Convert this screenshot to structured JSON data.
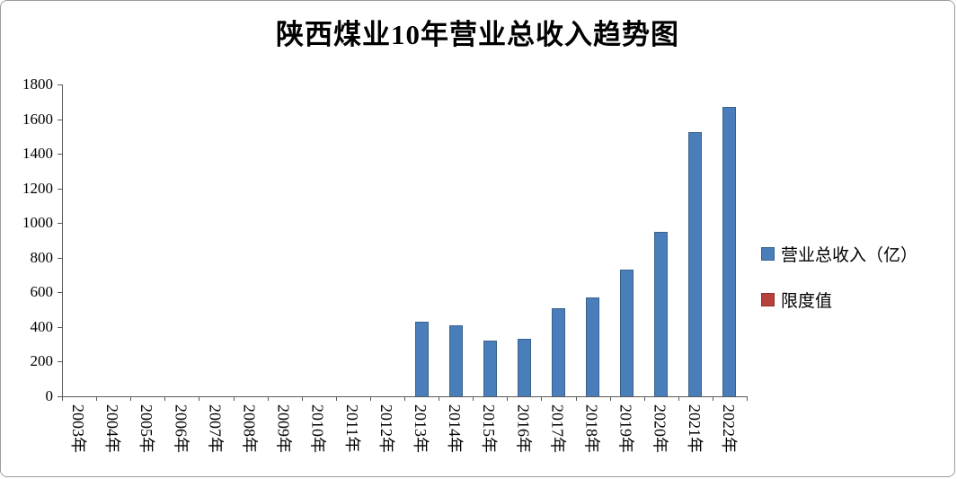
{
  "chart_data": {
    "type": "bar",
    "title": "陕西煤业10年营业总收入趋势图",
    "categories": [
      "2003年",
      "2004年",
      "2005年",
      "2006年",
      "2007年",
      "2008年",
      "2009年",
      "2010年",
      "2011年",
      "2012年",
      "2013年",
      "2014年",
      "2015年",
      "2016年",
      "2017年",
      "2018年",
      "2019年",
      "2020年",
      "2021年",
      "2022年"
    ],
    "series": [
      {
        "name": "营业总收入（亿）",
        "color": "#4a7ebb",
        "border_color": "#38618c",
        "values": [
          null,
          null,
          null,
          null,
          null,
          null,
          null,
          null,
          null,
          null,
          432,
          408,
          321,
          331,
          509,
          572,
          734,
          950,
          1523,
          1668
        ]
      },
      {
        "name": "限度值",
        "color": "#b9413c",
        "border_color": "#8e312d",
        "values": [
          null,
          null,
          null,
          null,
          null,
          null,
          null,
          null,
          null,
          null,
          null,
          null,
          null,
          null,
          null,
          null,
          null,
          null,
          null,
          null
        ]
      }
    ],
    "ylim": [
      0,
      1800
    ],
    "ytick_step": 200,
    "yticks": [
      0,
      200,
      400,
      600,
      800,
      1000,
      1200,
      1400,
      1600,
      1800
    ],
    "xlabel": "",
    "ylabel": "",
    "grid": false,
    "legend_position": "right"
  }
}
